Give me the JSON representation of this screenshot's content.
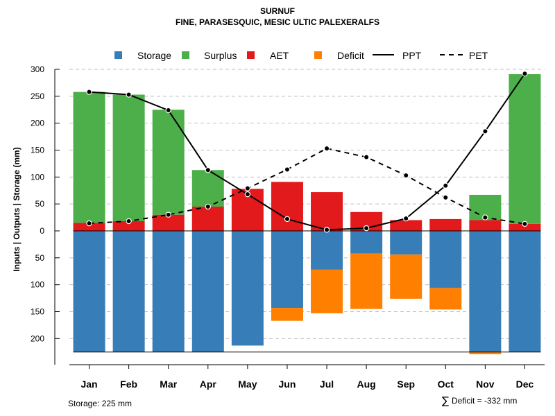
{
  "chart_data": {
    "type": "bar",
    "title": "SURNUF",
    "subtitle": "FINE, PARASESQUIC, MESIC ULTIC PALEXERALFS",
    "ylabel": "Inputs | Outputs | Storage    (mm)",
    "ylim": [
      -245,
      300
    ],
    "yticks": [
      300,
      250,
      200,
      150,
      100,
      50,
      0,
      -50,
      -100,
      -150,
      -200
    ],
    "ytick_labels": [
      "300",
      "250",
      "200",
      "150",
      "100",
      "50",
      "0",
      "50",
      "100",
      "150",
      "200"
    ],
    "grid": true,
    "categories": [
      "Jan",
      "Feb",
      "Mar",
      "Apr",
      "May",
      "Jun",
      "Jul",
      "Aug",
      "Sep",
      "Oct",
      "Nov",
      "Dec"
    ],
    "series": [
      {
        "name": "AET",
        "color": "#e31a1c",
        "values": [
          15,
          18,
          30,
          45,
          78,
          91,
          72,
          35,
          20,
          22,
          20,
          13
        ]
      },
      {
        "name": "Surplus",
        "color": "#4daf4a",
        "values": [
          243,
          235,
          195,
          68,
          0,
          0,
          0,
          0,
          0,
          0,
          47,
          278
        ]
      },
      {
        "name": "Storage",
        "color": "#377eb8",
        "values": [
          225,
          225,
          225,
          225,
          213,
          143,
          72,
          42,
          44,
          106,
          225,
          225
        ]
      },
      {
        "name": "Deficit",
        "color": "#ff7f00",
        "values": [
          0,
          0,
          0,
          0,
          0,
          24,
          81,
          103,
          82,
          40,
          4,
          0
        ]
      },
      {
        "name": "PPT",
        "color": "#000000",
        "line": "solid",
        "values": [
          258,
          253,
          224,
          113,
          68,
          22,
          2,
          5,
          23,
          84,
          185,
          292
        ]
      },
      {
        "name": "PET",
        "color": "#000000",
        "line": "dashed",
        "values": [
          14,
          18,
          30,
          45,
          79,
          114,
          153,
          137,
          103,
          62,
          25,
          13
        ]
      }
    ],
    "legend": {
      "position": "top",
      "entries": [
        {
          "label": "Storage",
          "color": "#377eb8",
          "kind": "box"
        },
        {
          "label": "Surplus",
          "color": "#4daf4a",
          "kind": "box"
        },
        {
          "label": "AET",
          "color": "#e31a1c",
          "kind": "box"
        },
        {
          "label": "Deficit",
          "color": "#ff7f00",
          "kind": "box"
        },
        {
          "label": "PPT",
          "color": "#000000",
          "kind": "solid"
        },
        {
          "label": "PET",
          "color": "#000000",
          "kind": "dashed"
        }
      ]
    },
    "storage_capacity": 225,
    "annotations": {
      "storage": "Storage: 225 mm",
      "deficit_symbol": "∑",
      "deficit": "Deficit = -332 mm"
    }
  }
}
